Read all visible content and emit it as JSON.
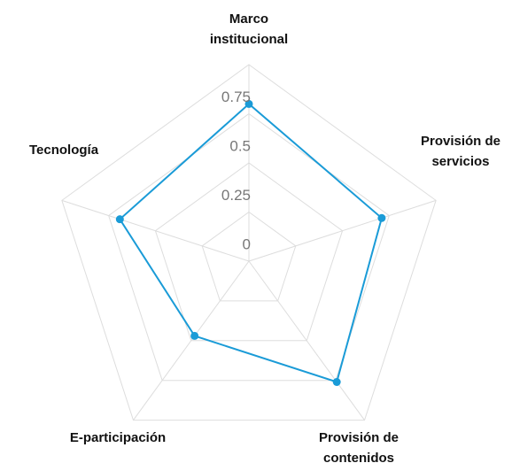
{
  "chart_data": {
    "type": "radar",
    "categories": [
      "Marco institucional",
      "Provisión de servicios",
      "Provisión de contenidos",
      "E-participación",
      "Tecnología"
    ],
    "series": [
      {
        "name": null,
        "color": "#1a9bd7",
        "values": [
          0.8,
          0.71,
          0.76,
          0.47,
          0.69
        ]
      }
    ],
    "ylim": [
      0,
      1
    ],
    "yticks": [
      0,
      0.25,
      0.5,
      0.75
    ],
    "grid": true
  }
}
